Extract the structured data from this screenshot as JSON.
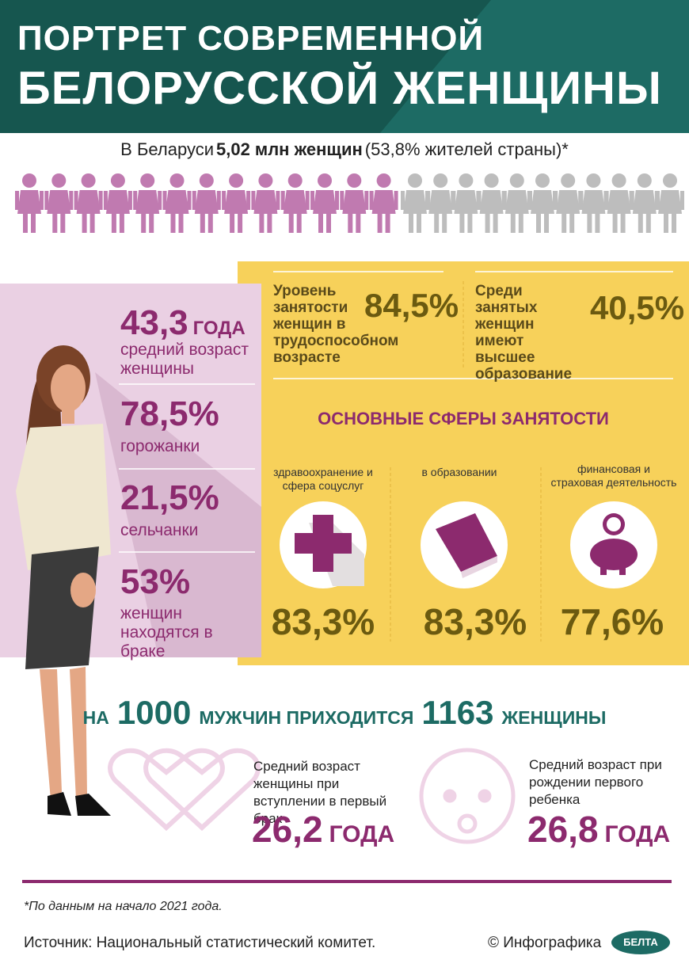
{
  "header": {
    "title_line1": "ПОРТРЕТ СОВРЕМЕННОЙ",
    "title_line2": "БЕЛОРУССКОЙ ЖЕНЩИНЫ"
  },
  "population": {
    "prefix": "В Беларуси",
    "highlight": "5,02 млн женщин",
    "suffix": "(53,8% жителей страны)*"
  },
  "profile": [
    {
      "number": "43,3",
      "unit": "ГОДА",
      "label": "средний возраст женщины"
    },
    {
      "number": "78,5%",
      "label": "горожанки"
    },
    {
      "number": "21,5%",
      "label": "сельчанки"
    },
    {
      "number": "53%",
      "label": "женщин находятся в браке"
    }
  ],
  "employment": [
    {
      "label": "Уровень занятости женщин в трудоспособном возрасте",
      "value": "84,5%"
    },
    {
      "label": "Среди занятых женщин имеют высшее образование",
      "value": "40,5%"
    }
  ],
  "spheres": {
    "title": "ОСНОВНЫЕ СФЕРЫ ЗАНЯТОСТИ",
    "items": [
      {
        "label": "здравоохранение и сфера соцуслуг",
        "value": "83,3%"
      },
      {
        "label": "в образовании",
        "value": "83,3%"
      },
      {
        "label": "финансовая и страховая деятельность",
        "value": "77,6%"
      }
    ]
  },
  "ratio": {
    "p1": "НА",
    "n1": "1000",
    "p2": "МУЖЧИН ПРИХОДИТСЯ",
    "n2": "1163",
    "p3": "ЖЕНЩИНЫ"
  },
  "ages": [
    {
      "label": "Средний возраст женщины при вступлении в первый брак",
      "number": "26,2",
      "unit": "ГОДА"
    },
    {
      "label": "Средний возраст при рождении первого ребенка",
      "number": "26,8",
      "unit": "ГОДА"
    }
  ],
  "footer": {
    "note": "*По данным на начало 2021 года.",
    "source": "Источник: Национальный статистический комитет.",
    "credit": "© Инфографика",
    "logo": "БЕЛТА"
  }
}
